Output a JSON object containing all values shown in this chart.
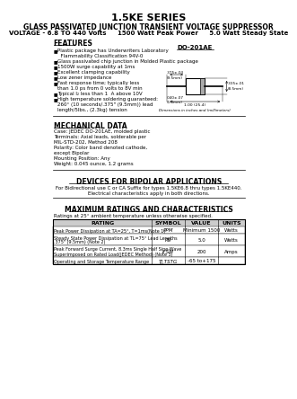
{
  "title": "1.5KE SERIES",
  "subtitle1": "GLASS PASSIVATED JUNCTION TRANSIENT VOLTAGE SUPPRESSOR",
  "subtitle2": "VOLTAGE - 6.8 TO 440 Volts     1500 Watt Peak Power     5.0 Watt Steady State",
  "features_title": "FEATURES",
  "features": [
    "Plastic package has Underwriters Laboratory\n  Flammability Classification 94V-0",
    "Glass passivated chip junction in Molded Plastic package",
    "1500W surge capability at 1ms",
    "Excellent clamping capability",
    "Low zener impedance",
    "Fast response time; typically less\nthan 1.0 ps from 0 volts to 8V min",
    "Typical I₂ less than 1  A above 10V",
    "High temperature soldering guaranteed:\n260° (10 seconds/.375\" (9.5mm)) lead\nlength/5lbs., (2.3kg) tension"
  ],
  "mech_title": "MECHANICAL DATA",
  "mech_data": [
    "Case: JEDEC DO-201AE, molded plastic",
    "Terminals: Axial leads, solderable per",
    "MIL-STD-202, Method 208",
    "Polarity: Color band denoted cathode,",
    "except Bipolar",
    "Mounting Position: Any",
    "Weight: 0.045 ounce, 1.2 grams"
  ],
  "bipolar_title": "DEVICES FOR BIPOLAR APPLICATIONS",
  "bipolar_text1": "For Bidirectional use C or CA Suffix for types 1.5KE6.8 thru types 1.5KE440.",
  "bipolar_text2": "Electrical characteristics apply in both directions.",
  "ratings_title": "MAXIMUM RATINGS AND CHARACTERISTICS",
  "ratings_note": "Ratings at 25° ambient temperature unless otherwise specified.",
  "table_headers": [
    "RATING",
    "SYMBOL",
    "VALUE",
    "UNITS"
  ],
  "table_rows": [
    [
      "Peak Power Dissipation at TA=25°, T=1ms(Note 1)",
      "PPM",
      "Minimum 1500",
      "Watts"
    ],
    [
      "Steady State Power Dissipation at TL=75° Lead Lengths\n.375\" (9.5mm) (Note 2)",
      "PD",
      "5.0",
      "Watts"
    ],
    [
      "Peak Forward Surge Current, 8.3ms Single Half Sine-Wave\nSuperimposed on Rated Load(JEDEC Method) (Note 3)",
      "IFSM",
      "200",
      "Amps"
    ],
    [
      "Operating and Storage Temperature Range",
      "TJ,TSTG",
      "-65 to+175",
      ""
    ]
  ],
  "package_label": "DO-201AE",
  "bg_color": "#ffffff",
  "text_color": "#000000",
  "table_header_bg": "#cccccc",
  "table_line_color": "#000000"
}
